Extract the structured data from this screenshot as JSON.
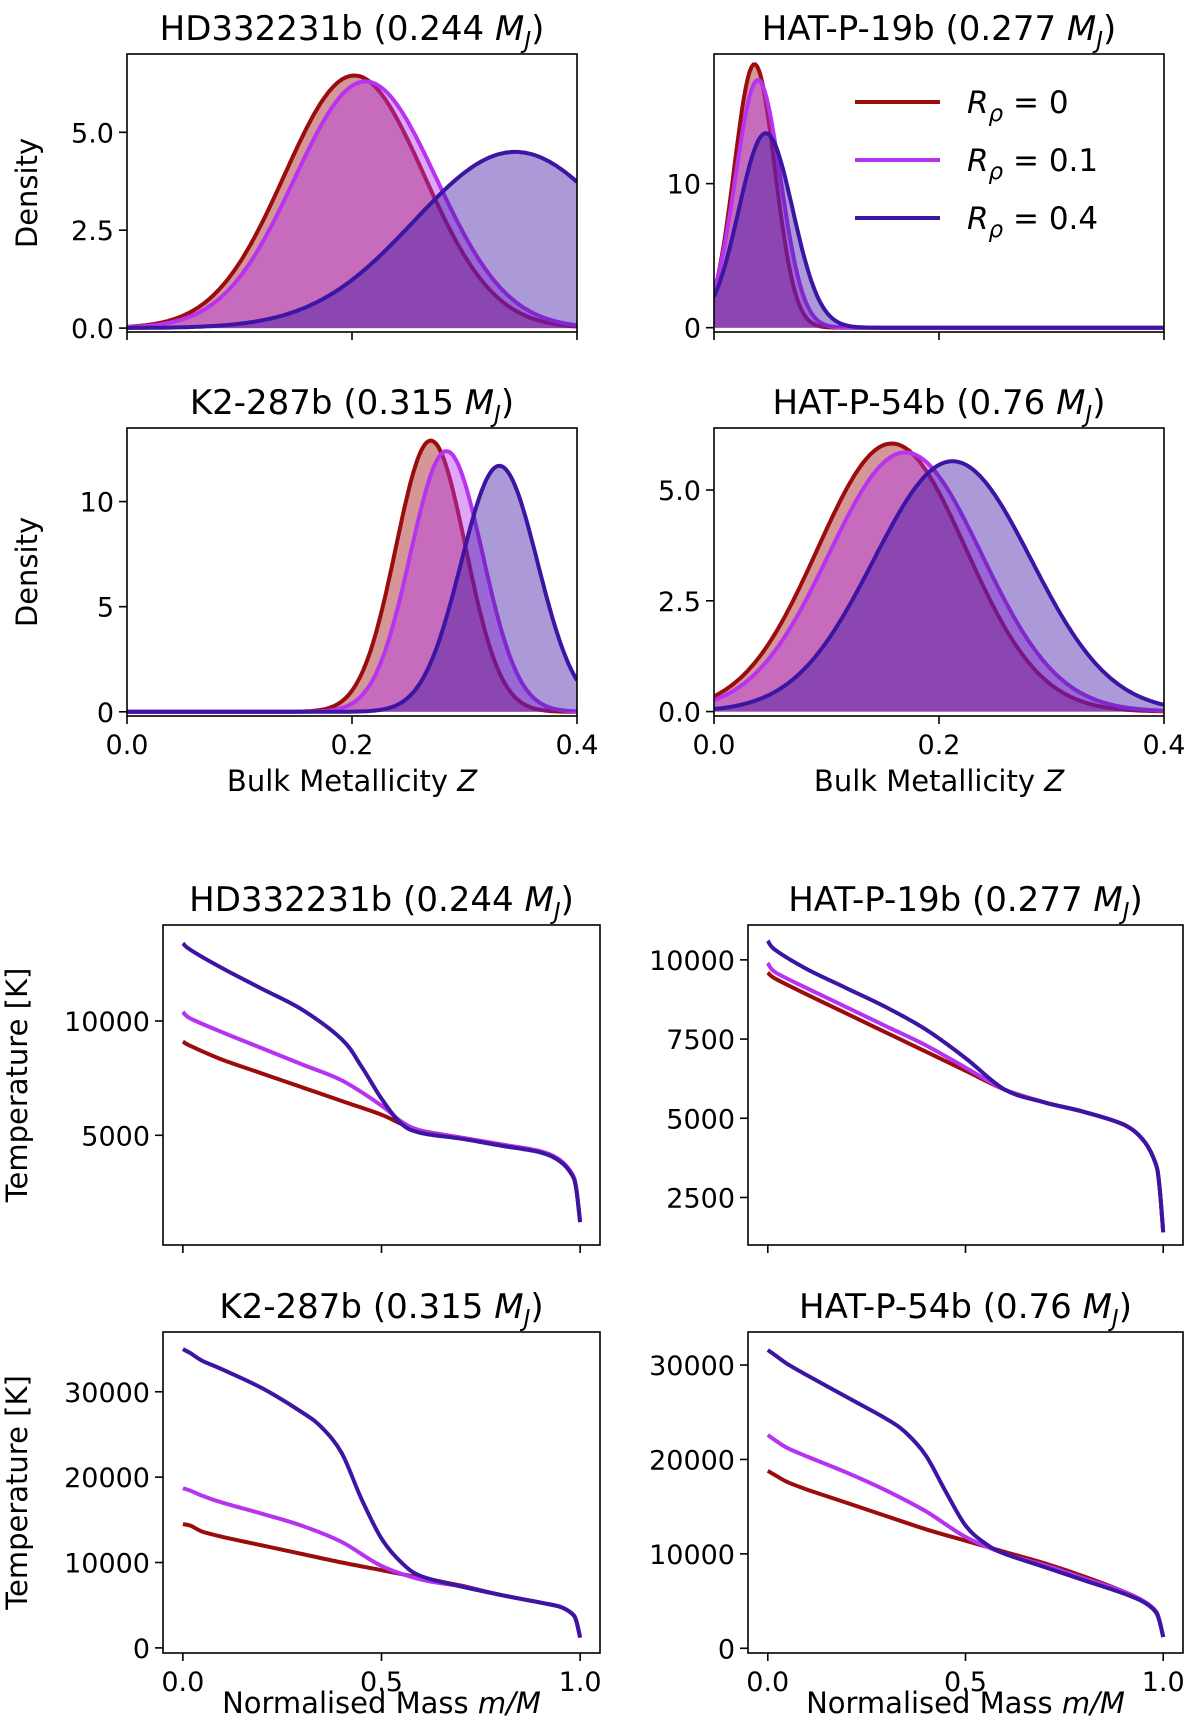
{
  "colors": {
    "r0": "#9b0c0c",
    "r01": "#b733f0",
    "r04": "#3d15a3"
  },
  "legend": [
    {
      "key": "r0",
      "label": "Rρ = 0"
    },
    {
      "key": "r01",
      "label": "Rρ = 0.1"
    },
    {
      "key": "r04",
      "label": "Rρ = 0.4"
    }
  ],
  "chart_data": [
    {
      "type": "area",
      "title": "HD332231b (0.244 MJ)",
      "xlim": [
        0,
        0.4
      ],
      "ylim": [
        -0.1,
        7.0
      ],
      "ylabel": "Density",
      "xlabel": "",
      "xticks": [],
      "yticks": [
        "0.0",
        "2.5",
        "5.0"
      ],
      "ytick_values": [
        0,
        2.5,
        5.0
      ],
      "series": [
        {
          "key": "r0",
          "mu": 0.202,
          "sigma": 0.062,
          "peak": 6.45
        },
        {
          "key": "r01",
          "mu": 0.212,
          "sigma": 0.063,
          "peak": 6.3
        },
        {
          "key": "r04",
          "mu": 0.345,
          "sigma": 0.09,
          "peak": 4.5
        }
      ]
    },
    {
      "type": "area",
      "title": "HAT-P-19b (0.277 MJ)",
      "xlim": [
        0,
        0.4
      ],
      "ylim": [
        -0.3,
        19.0
      ],
      "ylabel": "",
      "xlabel": "",
      "xticks": [],
      "yticks": [
        "0",
        "10"
      ],
      "ytick_values": [
        0,
        10
      ],
      "series": [
        {
          "key": "r0",
          "mu": 0.036,
          "sigma": 0.018,
          "peak": 18.3
        },
        {
          "key": "r01",
          "mu": 0.039,
          "sigma": 0.02,
          "peak": 17.2
        },
        {
          "key": "r04",
          "mu": 0.046,
          "sigma": 0.024,
          "peak": 13.5
        }
      ]
    },
    {
      "type": "area",
      "title": "K2-287b (0.315 MJ)",
      "xlim": [
        0,
        0.4
      ],
      "ylim": [
        -0.2,
        13.5
      ],
      "ylabel": "Density",
      "xlabel": "Bulk Metallicity Z",
      "xticks": [
        "0.0",
        "0.2",
        "0.4"
      ],
      "yticks": [
        "0",
        "5",
        "10"
      ],
      "ytick_values": [
        0,
        5,
        10
      ],
      "series": [
        {
          "key": "r0",
          "mu": 0.27,
          "sigma": 0.031,
          "peak": 12.9
        },
        {
          "key": "r01",
          "mu": 0.284,
          "sigma": 0.032,
          "peak": 12.4
        },
        {
          "key": "r04",
          "mu": 0.331,
          "sigma": 0.034,
          "peak": 11.7
        }
      ]
    },
    {
      "type": "area",
      "title": "HAT-P-54b (0.76 MJ)",
      "xlim": [
        0,
        0.4
      ],
      "ylim": [
        -0.1,
        6.4
      ],
      "ylabel": "",
      "xlabel": "Bulk Metallicity Z",
      "xticks": [
        "0.0",
        "0.2",
        "0.4"
      ],
      "yticks": [
        "0.0",
        "2.5",
        "5.0"
      ],
      "ytick_values": [
        0,
        2.5,
        5.0
      ],
      "series": [
        {
          "key": "r0",
          "mu": 0.158,
          "sigma": 0.066,
          "peak": 6.05
        },
        {
          "key": "r01",
          "mu": 0.17,
          "sigma": 0.068,
          "peak": 5.85
        },
        {
          "key": "r04",
          "mu": 0.212,
          "sigma": 0.07,
          "peak": 5.65
        }
      ]
    },
    {
      "type": "line",
      "title": "HD332231b (0.244 MJ)",
      "xlim": [
        -0.05,
        1.05
      ],
      "ylim": [
        200,
        14200
      ],
      "ylabel": "Temperature [K]",
      "xlabel": "",
      "xticks": [],
      "yticks": [
        "5000",
        "10000"
      ],
      "ytick_values": [
        5000,
        10000
      ],
      "series": [
        {
          "key": "r0",
          "x": [
            0,
            0.02,
            0.1,
            0.2,
            0.3,
            0.4,
            0.5,
            0.55,
            0.6,
            0.7,
            0.8,
            0.9,
            0.95,
            0.98,
            0.99,
            1.0
          ],
          "y": [
            9100,
            8900,
            8300,
            7700,
            7100,
            6500,
            5900,
            5500,
            5200,
            4900,
            4600,
            4300,
            3900,
            3300,
            2700,
            1200
          ]
        },
        {
          "key": "r01",
          "x": [
            0,
            0.02,
            0.1,
            0.2,
            0.3,
            0.4,
            0.5,
            0.55,
            0.6,
            0.7,
            0.8,
            0.9,
            0.95,
            0.98,
            0.99,
            1.0
          ],
          "y": [
            10400,
            10100,
            9500,
            8800,
            8100,
            7400,
            6300,
            5600,
            5200,
            4900,
            4600,
            4300,
            3900,
            3300,
            2700,
            1200
          ]
        },
        {
          "key": "r04",
          "x": [
            0,
            0.02,
            0.1,
            0.2,
            0.3,
            0.4,
            0.45,
            0.5,
            0.55,
            0.6,
            0.7,
            0.8,
            0.9,
            0.95,
            0.98,
            0.99,
            1.0
          ],
          "y": [
            13400,
            13100,
            12300,
            11400,
            10500,
            9200,
            8000,
            6600,
            5500,
            5100,
            4850,
            4550,
            4250,
            3850,
            3250,
            2650,
            1200
          ]
        }
      ]
    },
    {
      "type": "line",
      "title": "HAT-P-19b (0.277 MJ)",
      "xlim": [
        -0.05,
        1.05
      ],
      "ylim": [
        1000,
        11100
      ],
      "ylabel": "",
      "xlabel": "",
      "xticks": [],
      "yticks": [
        "2500",
        "5000",
        "7500",
        "10000"
      ],
      "ytick_values": [
        2500,
        5000,
        7500,
        10000
      ],
      "series": [
        {
          "key": "r0",
          "x": [
            0,
            0.02,
            0.1,
            0.2,
            0.3,
            0.4,
            0.5,
            0.6,
            0.7,
            0.8,
            0.9,
            0.95,
            0.98,
            0.99,
            1.0
          ],
          "y": [
            9600,
            9400,
            8900,
            8300,
            7700,
            7100,
            6500,
            5900,
            5500,
            5200,
            4800,
            4300,
            3600,
            2900,
            1400
          ]
        },
        {
          "key": "r01",
          "x": [
            0,
            0.02,
            0.1,
            0.2,
            0.3,
            0.4,
            0.5,
            0.6,
            0.7,
            0.8,
            0.9,
            0.95,
            0.98,
            0.99,
            1.0
          ],
          "y": [
            9900,
            9600,
            9100,
            8500,
            7900,
            7300,
            6600,
            5900,
            5500,
            5200,
            4800,
            4300,
            3600,
            2900,
            1400
          ]
        },
        {
          "key": "r04",
          "x": [
            0,
            0.02,
            0.1,
            0.2,
            0.3,
            0.4,
            0.5,
            0.6,
            0.7,
            0.8,
            0.9,
            0.95,
            0.98,
            0.99,
            1.0
          ],
          "y": [
            10600,
            10300,
            9700,
            9100,
            8500,
            7800,
            6900,
            5900,
            5500,
            5200,
            4800,
            4300,
            3600,
            2900,
            1400
          ]
        }
      ]
    },
    {
      "type": "line",
      "title": "K2-287b (0.315 MJ)",
      "xlim": [
        -0.05,
        1.05
      ],
      "ylim": [
        -600,
        37000
      ],
      "ylabel": "Temperature [K]",
      "xlabel": "Normalised Mass m/M",
      "xticks": [
        "0.0",
        "0.5",
        "1.0"
      ],
      "yticks": [
        "0",
        "10000",
        "20000",
        "30000"
      ],
      "ytick_values": [
        0,
        10000,
        20000,
        30000
      ],
      "series": [
        {
          "key": "r0",
          "x": [
            0,
            0.02,
            0.05,
            0.1,
            0.2,
            0.3,
            0.4,
            0.5,
            0.6,
            0.7,
            0.8,
            0.9,
            0.95,
            0.98,
            0.99,
            1.0
          ],
          "y": [
            14500,
            14300,
            13600,
            13000,
            12000,
            11000,
            10000,
            9100,
            8200,
            7300,
            6200,
            5300,
            4800,
            4000,
            3200,
            1200
          ]
        },
        {
          "key": "r01",
          "x": [
            0,
            0.02,
            0.05,
            0.1,
            0.2,
            0.3,
            0.4,
            0.5,
            0.6,
            0.7,
            0.8,
            0.9,
            0.95,
            0.98,
            0.99,
            1.0
          ],
          "y": [
            18700,
            18400,
            17800,
            17000,
            15700,
            14300,
            12400,
            9600,
            8000,
            7200,
            6200,
            5300,
            4800,
            4000,
            3200,
            1200
          ]
        },
        {
          "key": "r04",
          "x": [
            0,
            0.02,
            0.05,
            0.1,
            0.2,
            0.3,
            0.35,
            0.4,
            0.45,
            0.5,
            0.55,
            0.6,
            0.7,
            0.8,
            0.9,
            0.95,
            0.98,
            0.99,
            1.0
          ],
          "y": [
            35000,
            34500,
            33600,
            32600,
            30400,
            27600,
            25800,
            22800,
            17400,
            12800,
            10000,
            8400,
            7200,
            6200,
            5300,
            4800,
            4000,
            3200,
            1200
          ]
        }
      ]
    },
    {
      "type": "line",
      "title": "HAT-P-54b (0.76 MJ)",
      "xlim": [
        -0.05,
        1.05
      ],
      "ylim": [
        -500,
        33500
      ],
      "ylabel": "",
      "xlabel": "Normalised Mass m/M",
      "xticks": [
        "0.0",
        "0.5",
        "1.0"
      ],
      "yticks": [
        "0",
        "10000",
        "20000",
        "30000"
      ],
      "ytick_values": [
        0,
        10000,
        20000,
        30000
      ],
      "series": [
        {
          "key": "r0",
          "x": [
            0,
            0.02,
            0.05,
            0.1,
            0.2,
            0.3,
            0.4,
            0.5,
            0.6,
            0.7,
            0.8,
            0.9,
            0.95,
            0.98,
            0.99,
            1.0
          ],
          "y": [
            18800,
            18300,
            17600,
            16800,
            15400,
            14000,
            12600,
            11400,
            10200,
            9000,
            7600,
            6000,
            5000,
            4000,
            3000,
            1200
          ]
        },
        {
          "key": "r01",
          "x": [
            0,
            0.02,
            0.05,
            0.1,
            0.2,
            0.3,
            0.4,
            0.5,
            0.6,
            0.7,
            0.8,
            0.9,
            0.95,
            0.98,
            0.99,
            1.0
          ],
          "y": [
            22600,
            22000,
            21200,
            20300,
            18600,
            16700,
            14500,
            11800,
            10000,
            8800,
            7400,
            6000,
            5000,
            4000,
            3000,
            1200
          ]
        },
        {
          "key": "r04",
          "x": [
            0,
            0.02,
            0.05,
            0.1,
            0.2,
            0.3,
            0.35,
            0.4,
            0.45,
            0.5,
            0.55,
            0.6,
            0.7,
            0.8,
            0.9,
            0.95,
            0.98,
            0.99,
            1.0
          ],
          "y": [
            31600,
            31000,
            30100,
            28900,
            26600,
            24300,
            22800,
            20400,
            16600,
            13000,
            11100,
            10000,
            8600,
            7200,
            5800,
            4900,
            3900,
            2900,
            1200
          ]
        }
      ]
    }
  ]
}
